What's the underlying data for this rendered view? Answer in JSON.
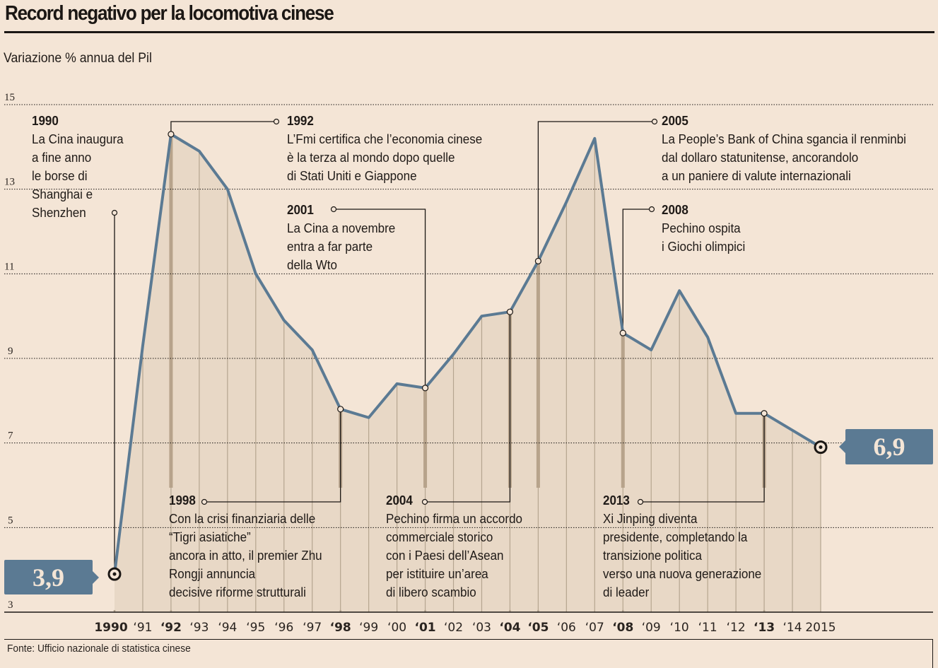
{
  "header": {
    "title": "Record negativo per la locomotiva cinese",
    "subtitle": "Variazione % annua del Pil"
  },
  "footer": {
    "source": "Fonte: Ufficio nazionale di statistica cinese"
  },
  "colors": {
    "background": "#F4E5D6",
    "area_fill": "#E8D8C6",
    "line": "#5B7A93",
    "highlight_bar": "#B7A38B",
    "gridline_vertical": "#B5A590",
    "callout": "#5B7A93"
  },
  "callouts": {
    "start": "3,9",
    "end": "6,9"
  },
  "annotations": [
    {
      "year": "1990",
      "lines": [
        "La Cina inaugura",
        "a fine anno",
        "le borse di",
        "Shanghai e",
        "Shenzhen"
      ]
    },
    {
      "year": "1992",
      "lines": [
        "L’Fmi certifica che l’economia cinese",
        "è la terza al mondo dopo quelle",
        "di Stati Uniti e Giappone"
      ]
    },
    {
      "year": "2001",
      "lines": [
        "La Cina a novembre",
        "entra a far parte",
        "della Wto"
      ]
    },
    {
      "year": "2005",
      "lines": [
        "La People’s Bank of China sgancia il renminbi",
        "dal dollaro statunitense, ancorandolo",
        "a un paniere di valute internazionali"
      ]
    },
    {
      "year": "2008",
      "lines": [
        "Pechino ospita",
        "i Giochi olimpici"
      ]
    },
    {
      "year": "1998",
      "lines": [
        "Con la crisi finanziaria delle",
        "“Tigri asiatiche”",
        "ancora in atto, il premier Zhu",
        "Rongji annuncia",
        "decisive riforme strutturali"
      ]
    },
    {
      "year": "2004",
      "lines": [
        "Pechino firma un accordo",
        "commerciale storico",
        "con i Paesi dell’Asean",
        "per istituire un’area",
        "di libero scambio"
      ]
    },
    {
      "year": "2013",
      "lines": [
        "Xi Jinping diventa",
        "presidente, completando la",
        "transizione politica",
        "verso una nuova generazione",
        "di leader"
      ]
    }
  ],
  "chart_data": {
    "type": "area",
    "title": "Record negativo per la locomotiva cinese",
    "subtitle": "Variazione % annua del Pil",
    "xlabel": "",
    "ylabel": "Variazione % annua del Pil",
    "ylim": [
      3,
      15
    ],
    "yticks": [
      3,
      5,
      7,
      9,
      11,
      13,
      15
    ],
    "grid": "horizontal-dotted",
    "x": [
      1990,
      1991,
      1992,
      1993,
      1994,
      1995,
      1996,
      1997,
      1998,
      1999,
      2000,
      2001,
      2002,
      2003,
      2004,
      2005,
      2006,
      2007,
      2008,
      2009,
      2010,
      2011,
      2012,
      2013,
      2014,
      2015
    ],
    "xtick_labels": [
      "1990",
      "‘91",
      "‘92",
      "‘93",
      "‘94",
      "‘95",
      "‘96",
      "‘97",
      "‘98",
      "‘99",
      "‘00",
      "‘01",
      "‘02",
      "‘03",
      "‘04",
      "‘05",
      "‘06",
      "‘07",
      "‘08",
      "‘09",
      "‘10",
      "‘11",
      "‘12",
      "‘13",
      "‘14",
      "2015"
    ],
    "bold_ticks": [
      1990,
      1992,
      1998,
      2001,
      2004,
      2005,
      2008,
      2013
    ],
    "series": [
      {
        "name": "Variazione % annua del Pil",
        "values": [
          3.9,
          9.3,
          14.3,
          13.9,
          13.0,
          11.0,
          9.9,
          9.2,
          7.8,
          7.6,
          8.4,
          8.3,
          9.1,
          10.0,
          10.1,
          11.3,
          12.7,
          14.2,
          9.6,
          9.2,
          10.6,
          9.5,
          7.7,
          7.7,
          7.3,
          6.9
        ]
      }
    ],
    "highlighted_years": [
      1992,
      1998,
      2001,
      2004,
      2005,
      2008,
      2013
    ],
    "annotated_years": [
      1990,
      1992,
      1998,
      2001,
      2004,
      2005,
      2008,
      2013
    ],
    "data_labels": [
      {
        "x": 1990,
        "label": "3,9"
      },
      {
        "x": 2015,
        "label": "6,9"
      }
    ]
  }
}
